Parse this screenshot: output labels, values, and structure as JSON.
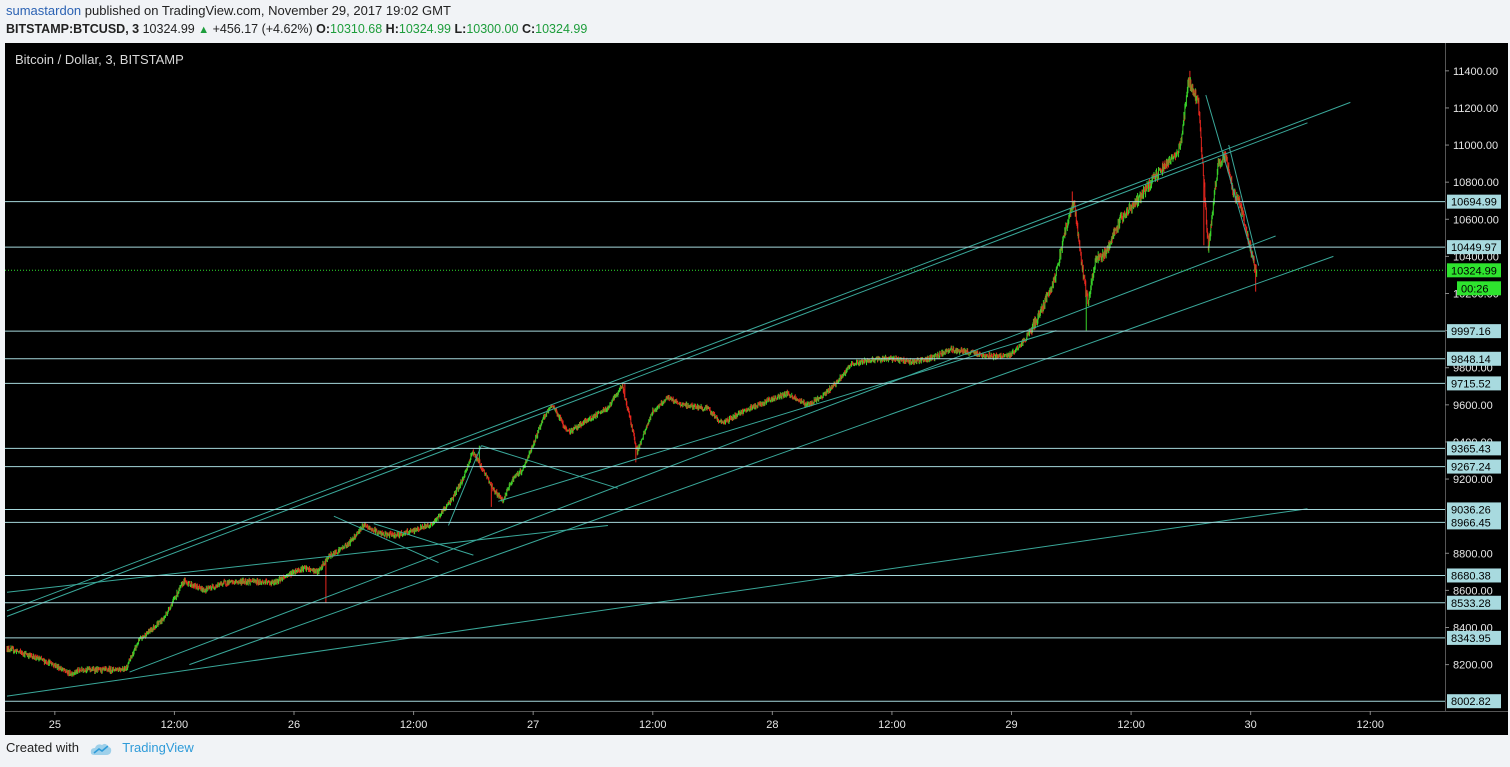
{
  "header": {
    "author": "sumastardon",
    "published_text": "published on TradingView.com, November 29, 2017 19:02 GMT",
    "symbol": "BITSTAMP:BTCUSD, 3",
    "last": "10324.99",
    "change": "+456.17 (+4.62%)",
    "open_label": "O:",
    "open": "10310.68",
    "high_label": "H:",
    "high": "10324.99",
    "low_label": "L:",
    "low": "10300.00",
    "close_label": "C:",
    "close": "10324.99"
  },
  "footer": {
    "created_with": "Created with",
    "brand": "TradingView"
  },
  "colors": {
    "background": "#000000",
    "grid": "#2a2a2a",
    "up": "#39d32a",
    "down": "#e8261e",
    "lines": "#3aa89a",
    "hline": "#a6d8dc",
    "price_tag": "#a8dadf",
    "current_tag": "#2ee32e"
  },
  "chart_data": {
    "type": "candlestick",
    "title": "Bitcoin / Dollar, 3, BITSTAMP",
    "y_axis": {
      "min": 7950,
      "max": 11550,
      "ticks": [
        "8200.00",
        "8400.00",
        "8600.00",
        "8800.00",
        "9200.00",
        "9400.00",
        "9600.00",
        "9800.00",
        "10000.00",
        "10200.00",
        "10400.00",
        "10600.00",
        "10800.00",
        "11000.00",
        "11200.00",
        "11400.00"
      ]
    },
    "x_axis": {
      "labels": [
        "25",
        "12:00",
        "26",
        "12:00",
        "27",
        "12:00",
        "28",
        "12:00",
        "29",
        "12:00",
        "30",
        "12:00"
      ],
      "hours": [
        0,
        12,
        24,
        36,
        48,
        60,
        72,
        84,
        96,
        108,
        120,
        132
      ]
    },
    "x_range_hours": [
      -4.8,
      139.5
    ],
    "price_path": [
      [
        -4.8,
        8290
      ],
      [
        -2.5,
        8250
      ],
      [
        0,
        8200
      ],
      [
        1.5,
        8150
      ],
      [
        3,
        8175
      ],
      [
        5,
        8170
      ],
      [
        7.2,
        8180
      ],
      [
        8.5,
        8330
      ],
      [
        11,
        8450
      ],
      [
        13,
        8650
      ],
      [
        15,
        8600
      ],
      [
        17,
        8640
      ],
      [
        19.5,
        8650
      ],
      [
        22,
        8640
      ],
      [
        24,
        8700
      ],
      [
        25,
        8720
      ],
      [
        26.5,
        8700
      ],
      [
        27.5,
        8780
      ],
      [
        29.5,
        8850
      ],
      [
        31,
        8950
      ],
      [
        33,
        8900
      ],
      [
        34.5,
        8900
      ],
      [
        36,
        8920
      ],
      [
        38,
        8960
      ],
      [
        40,
        9100
      ],
      [
        41,
        9200
      ],
      [
        42,
        9350
      ],
      [
        43,
        9250
      ],
      [
        44,
        9150
      ],
      [
        45,
        9080
      ],
      [
        46,
        9200
      ],
      [
        47,
        9250
      ],
      [
        48,
        9380
      ],
      [
        49,
        9520
      ],
      [
        50,
        9600
      ],
      [
        51.5,
        9450
      ],
      [
        53,
        9500
      ],
      [
        55.5,
        9580
      ],
      [
        57,
        9700
      ],
      [
        57.8,
        9520
      ],
      [
        58.5,
        9350
      ],
      [
        60,
        9560
      ],
      [
        61.5,
        9640
      ],
      [
        63,
        9600
      ],
      [
        65.5,
        9580
      ],
      [
        67,
        9500
      ],
      [
        69,
        9560
      ],
      [
        71.5,
        9620
      ],
      [
        73.5,
        9660
      ],
      [
        75.5,
        9600
      ],
      [
        77,
        9640
      ],
      [
        78.5,
        9720
      ],
      [
        80,
        9820
      ],
      [
        82,
        9840
      ],
      [
        84,
        9850
      ],
      [
        86,
        9830
      ],
      [
        88,
        9850
      ],
      [
        90,
        9900
      ],
      [
        92,
        9880
      ],
      [
        94.5,
        9860
      ],
      [
        96,
        9870
      ],
      [
        97.5,
        9960
      ],
      [
        99,
        10100
      ],
      [
        100.5,
        10300
      ],
      [
        101.5,
        10550
      ],
      [
        102.3,
        10700
      ],
      [
        103,
        10400
      ],
      [
        103.7,
        10150
      ],
      [
        104.5,
        10380
      ],
      [
        105.5,
        10420
      ],
      [
        107,
        10600
      ],
      [
        109,
        10720
      ],
      [
        110.5,
        10830
      ],
      [
        112,
        10920
      ],
      [
        113,
        10990
      ],
      [
        113.8,
        11350
      ],
      [
        114.8,
        11230
      ],
      [
        115.8,
        10450
      ],
      [
        116.8,
        10900
      ],
      [
        117.5,
        10950
      ],
      [
        118.3,
        10740
      ],
      [
        119,
        10680
      ],
      [
        119.8,
        10500
      ],
      [
        120.3,
        10380
      ],
      [
        120.6,
        10324.99
      ]
    ],
    "spikes": [
      {
        "h": 27.2,
        "low": 8533
      },
      {
        "h": 42.6,
        "high": 9380
      },
      {
        "h": 43.8,
        "low": 9050
      },
      {
        "h": 57.2,
        "high": 9715
      },
      {
        "h": 58.3,
        "low": 9290
      },
      {
        "h": 102.1,
        "high": 10750
      },
      {
        "h": 103.5,
        "low": 10000
      },
      {
        "h": 113.9,
        "high": 11400
      },
      {
        "h": 115.3,
        "low": 10460
      },
      {
        "h": 120.5,
        "low": 10210
      }
    ],
    "horizontal_levels": [
      {
        "price": 10694.99,
        "label": "10694.99"
      },
      {
        "price": 10449.97,
        "label": "10449.97"
      },
      {
        "price": 9997.16,
        "label": "9997.16"
      },
      {
        "price": 9848.14,
        "label": "9848.14"
      },
      {
        "price": 9715.52,
        "label": "9715.52"
      },
      {
        "price": 9365.43,
        "label": "9365.43"
      },
      {
        "price": 9267.24,
        "label": "9267.24"
      },
      {
        "price": 9036.26,
        "label": "9036.26"
      },
      {
        "price": 8966.45,
        "label": "8966.45"
      },
      {
        "price": 8680.38,
        "label": "8680.38"
      },
      {
        "price": 8533.28,
        "label": "8533.28"
      },
      {
        "price": 8343.95,
        "label": "8343.95"
      },
      {
        "price": 8002.82,
        "label": "8002.82"
      }
    ],
    "current_price": {
      "price": 10324.99,
      "label": "10324.99",
      "countdown": "00:26"
    },
    "trend_lines": [
      {
        "h1": -4.8,
        "p1": 8030,
        "h2": 125.7,
        "p2": 9040
      },
      {
        "h1": -4.8,
        "p1": 8490,
        "h2": 130,
        "p2": 11230
      },
      {
        "h1": -4.8,
        "p1": 8460,
        "h2": 125.7,
        "p2": 11120
      },
      {
        "h1": 7.5,
        "p1": 8160,
        "h2": 122.5,
        "p2": 10510
      },
      {
        "h1": 13.5,
        "p1": 8200,
        "h2": 128.3,
        "p2": 10400
      },
      {
        "h1": -4.8,
        "p1": 8590,
        "h2": 55.5,
        "p2": 8950
      },
      {
        "h1": 28,
        "p1": 9000,
        "h2": 38.5,
        "p2": 8750
      },
      {
        "h1": 32,
        "p1": 8960,
        "h2": 42,
        "p2": 8790
      },
      {
        "h1": 39.5,
        "p1": 8950,
        "h2": 42.8,
        "p2": 9380
      },
      {
        "h1": 42.8,
        "p1": 9380,
        "h2": 56.5,
        "p2": 9150
      },
      {
        "h1": 44.5,
        "p1": 9080,
        "h2": 100.5,
        "p2": 10000
      },
      {
        "h1": 115.5,
        "p1": 11270,
        "h2": 120.3,
        "p2": 10380
      },
      {
        "h1": 117.8,
        "p1": 11000,
        "h2": 120.8,
        "p2": 10350
      }
    ]
  }
}
